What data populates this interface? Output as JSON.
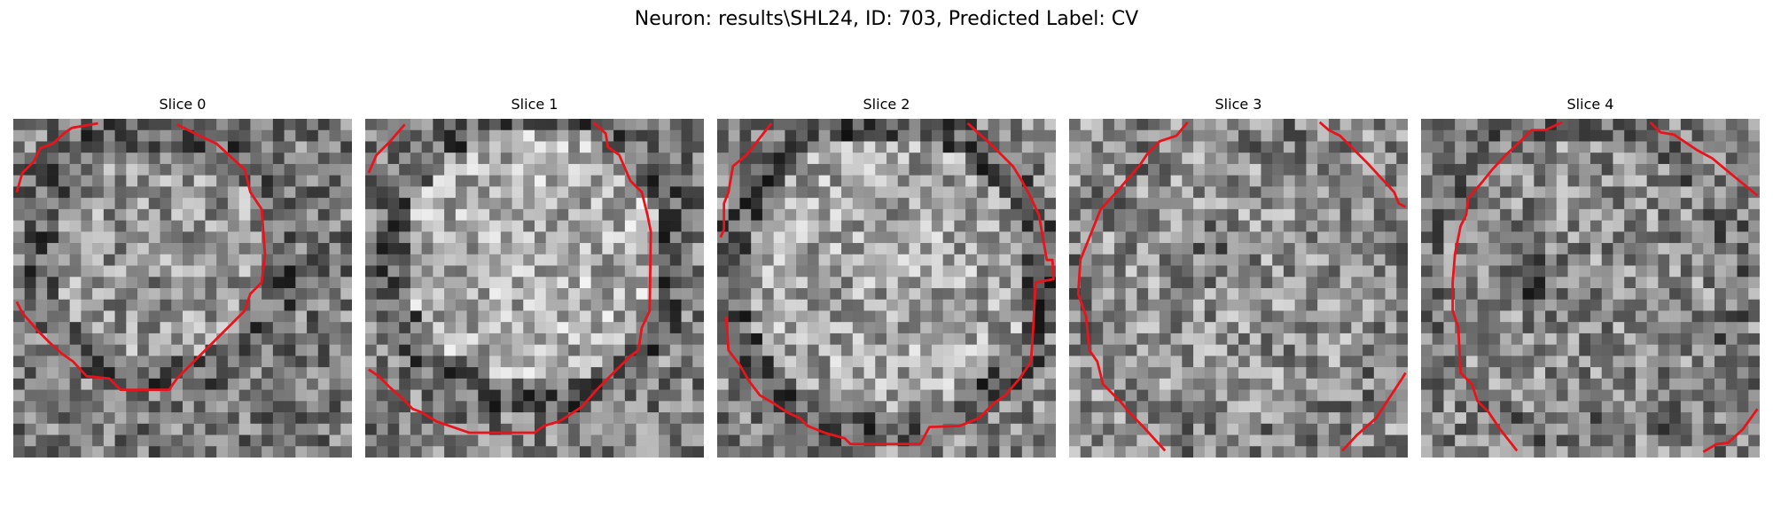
{
  "figure": {
    "title": "Neuron: results\\SHL24, ID: 703, Predicted Label: CV"
  },
  "slices": [
    {
      "label": "Slice 0"
    },
    {
      "label": "Slice 1"
    },
    {
      "label": "Slice 2"
    },
    {
      "label": "Slice 3"
    },
    {
      "label": "Slice 4"
    }
  ],
  "colors": {
    "contour": "#e8141b",
    "background": "#ffffff"
  }
}
